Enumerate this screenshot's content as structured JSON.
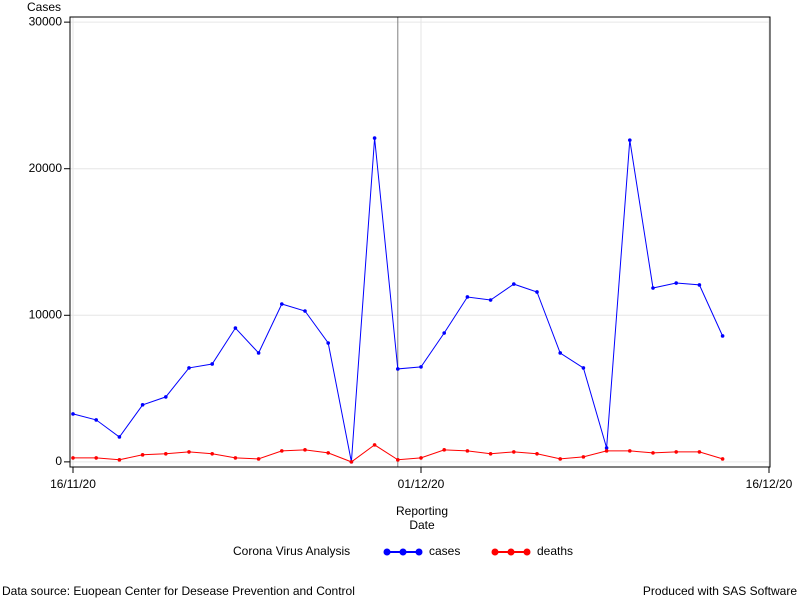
{
  "chart_data": {
    "type": "line",
    "ylabel": "Cases",
    "xlabel": [
      "Reporting",
      "Date"
    ],
    "legend_title": "Corona Virus Analysis",
    "footnote_left": "Data source: Euopean Center for Desease Prevention and Control",
    "footnote_right": "Produced with SAS Software",
    "x": [
      "2020-11-16",
      "2020-11-17",
      "2020-11-18",
      "2020-11-19",
      "2020-11-20",
      "2020-11-21",
      "2020-11-22",
      "2020-11-23",
      "2020-11-24",
      "2020-11-25",
      "2020-11-26",
      "2020-11-27",
      "2020-11-28",
      "2020-11-29",
      "2020-11-30",
      "2020-12-01",
      "2020-12-02",
      "2020-12-03",
      "2020-12-04",
      "2020-12-05",
      "2020-12-06",
      "2020-12-07",
      "2020-12-08",
      "2020-12-09",
      "2020-12-10",
      "2020-12-11",
      "2020-12-12",
      "2020-12-13",
      "2020-12-14"
    ],
    "series": [
      {
        "name": "cases",
        "color": "#0000ff",
        "values": [
          3270,
          2860,
          1700,
          3890,
          4430,
          6410,
          6680,
          9130,
          7430,
          10770,
          10290,
          8110,
          0,
          22090,
          6340,
          6480,
          8790,
          11250,
          11040,
          12130,
          11590,
          7430,
          6410,
          950,
          21950,
          11860,
          12200,
          12070,
          8590
        ]
      },
      {
        "name": "deaths",
        "color": "#ff0000",
        "values": [
          270,
          270,
          140,
          480,
          550,
          680,
          550,
          270,
          200,
          750,
          820,
          610,
          0,
          1160,
          140,
          270,
          820,
          750,
          550,
          680,
          550,
          200,
          340,
          750,
          750,
          610,
          680,
          680,
          200
        ]
      }
    ],
    "xlim": [
      "2020-11-16",
      "2020-12-16"
    ],
    "xticks": [
      {
        "value": "2020-11-16",
        "label": "16/11/20"
      },
      {
        "value": "2020-12-01",
        "label": "01/12/20"
      },
      {
        "value": "2020-12-16",
        "label": "16/12/20"
      }
    ],
    "ylim": [
      -350,
      30350
    ],
    "yticks": [
      0,
      10000,
      20000,
      30000
    ],
    "grid": true,
    "refline_x": "2020-11-30"
  }
}
